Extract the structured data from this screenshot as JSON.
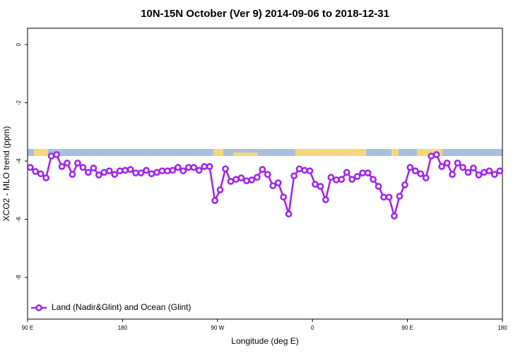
{
  "chart_data": {
    "type": "line",
    "title": "10N-15N October (Ver 9)   2014-09-06 to 2018-12-31",
    "xlabel": "Longitude (deg E)",
    "ylabel": "XCO2 - MLO trend (ppm)",
    "xlim": [
      90,
      540
    ],
    "ylim": [
      -9.43,
      0.56
    ],
    "xticks": [
      {
        "value": 90,
        "label": "90 E"
      },
      {
        "value": 180,
        "label": "180"
      },
      {
        "value": 270,
        "label": "90 W"
      },
      {
        "value": 360,
        "label": "0"
      },
      {
        "value": 450,
        "label": "90 E"
      },
      {
        "value": 540,
        "label": "180"
      }
    ],
    "yticks": [
      0,
      -2,
      -4,
      -6,
      -8
    ],
    "legend": "bottom-left",
    "x": [
      92.5,
      97.5,
      102.5,
      107.5,
      112.5,
      117.5,
      122.5,
      127.5,
      132.5,
      137.5,
      142.5,
      147.5,
      152.5,
      157.5,
      162.5,
      167.5,
      172.5,
      177.5,
      182.5,
      187.5,
      192.5,
      197.5,
      202.5,
      207.5,
      212.5,
      217.5,
      222.5,
      227.5,
      232.5,
      237.5,
      242.5,
      247.5,
      252.5,
      257.5,
      262.5,
      267.5,
      272.5,
      277.5,
      282.5,
      287.5,
      292.5,
      297.5,
      302.5,
      307.5,
      312.5,
      317.5,
      322.5,
      327.5,
      332.5,
      337.5,
      342.5,
      347.5,
      352.5,
      357.5,
      362.5,
      367.5,
      372.5,
      377.5,
      382.5,
      387.5,
      392.5,
      397.5,
      402.5,
      407.5,
      412.5,
      417.5,
      422.5,
      427.5,
      432.5,
      437.5,
      442.5,
      447.5,
      452.5,
      457.5,
      462.5,
      467.5,
      472.5,
      477.5,
      482.5,
      487.5,
      492.5,
      497.5,
      502.5,
      507.5,
      512.5,
      517.5,
      522.5,
      527.5,
      532.5,
      537.5
    ],
    "series": [
      {
        "name": "Land (Nadir&Glint) and Ocean (Glint)",
        "color": "#a020f0",
        "values": [
          -4.22,
          -4.36,
          -4.44,
          -4.58,
          -3.83,
          -3.78,
          -4.19,
          -4.07,
          -4.46,
          -4.07,
          -4.22,
          -4.39,
          -4.24,
          -4.48,
          -4.39,
          -4.34,
          -4.46,
          -4.34,
          -4.32,
          -4.29,
          -4.41,
          -4.41,
          -4.32,
          -4.44,
          -4.39,
          -4.34,
          -4.34,
          -4.32,
          -4.22,
          -4.34,
          -4.22,
          -4.22,
          -4.32,
          -4.19,
          -4.19,
          -5.36,
          -4.99,
          -4.27,
          -4.7,
          -4.63,
          -4.58,
          -4.68,
          -4.65,
          -4.56,
          -4.29,
          -4.46,
          -4.85,
          -4.75,
          -5.24,
          -5.82,
          -4.51,
          -4.27,
          -4.32,
          -4.34,
          -4.8,
          -4.87,
          -5.33,
          -4.56,
          -4.65,
          -4.63,
          -4.39,
          -4.63,
          -4.53,
          -4.41,
          -4.41,
          -4.63,
          -4.87,
          -5.24,
          -5.24,
          -5.89,
          -5.21,
          -4.82,
          -4.22,
          -4.34,
          -4.44,
          -4.58,
          -3.83,
          -3.78,
          -4.19,
          -4.07,
          -4.46,
          -4.07,
          -4.22,
          -4.39,
          -4.24,
          -4.48,
          -4.39,
          -4.34,
          -4.46,
          -4.34
        ]
      }
    ]
  }
}
